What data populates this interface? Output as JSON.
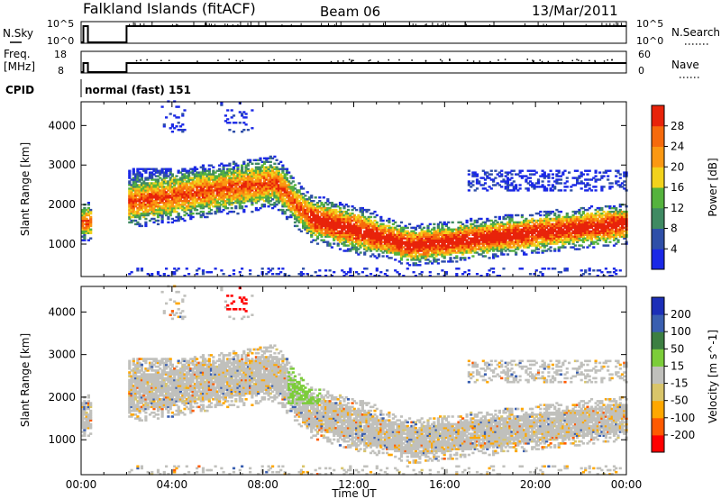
{
  "header": {
    "station": "Falkland Islands (fitACF)",
    "beam": "Beam 06",
    "date": "13/Mar/2011"
  },
  "strips": {
    "nsky": {
      "left_label": "N.Sky",
      "right_label": "N.Search",
      "left_ticks": [
        "10^5",
        "10^0"
      ],
      "right_ticks": [
        "10^5",
        "10^0"
      ]
    },
    "freq": {
      "left_label_1": "Freq.",
      "left_label_2": "[MHz]",
      "right_label": "Nave",
      "left_ticks": [
        "18",
        "8"
      ],
      "right_ticks": [
        "60",
        "0"
      ]
    },
    "cpid": {
      "label": "CPID",
      "value": "normal (fast) 151"
    }
  },
  "colors": {
    "power": [
      "#1a28e6",
      "#2f4fa8",
      "#3f8a62",
      "#55b33d",
      "#f2d21c",
      "#fb9812",
      "#f66a0c",
      "#e8230a"
    ],
    "velocity": [
      "#ff0000",
      "#ff5a00",
      "#ffa700",
      "#d9c56a",
      "#c0c0bc",
      "#7ccd3a",
      "#3d7f42",
      "#3a5fb0",
      "#1c2fb8"
    ]
  },
  "chart_data": [
    {
      "type": "heatmap",
      "name": "power",
      "ylabel": "Slant Range [km]",
      "yticks": [
        1000,
        2000,
        3000,
        4000
      ],
      "ylim": [
        180,
        4600
      ],
      "xlim": [
        0,
        24
      ],
      "colorbar": {
        "label": "Power [dB]",
        "ticks": [
          "4",
          "8",
          "12",
          "16",
          "20",
          "24",
          "28"
        ],
        "range": [
          0,
          32
        ]
      }
    },
    {
      "type": "heatmap",
      "name": "velocity",
      "ylabel": "Slant Range [km]",
      "yticks": [
        1000,
        2000,
        3000,
        4000
      ],
      "ylim": [
        180,
        4600
      ],
      "xlim": [
        0,
        24
      ],
      "xticks": [
        "00:00",
        "04:00",
        "08:00",
        "12:00",
        "16:00",
        "20:00",
        "00:00"
      ],
      "xlabel": "Time UT",
      "colorbar": {
        "label": "Velocity [m s^-1]",
        "ticks": [
          "-200",
          "-100",
          "-50",
          "-15",
          "15",
          "50",
          "100",
          "200"
        ]
      }
    }
  ]
}
